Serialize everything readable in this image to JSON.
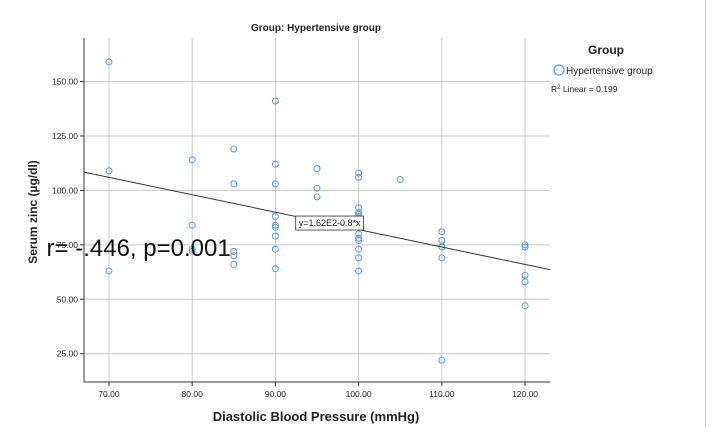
{
  "chart_data": {
    "type": "scatter",
    "title": "Group: Hypertensive group",
    "xlabel": "Diastolic Blood Pressure (mmHg)",
    "ylabel": "Serum zinc (µg/dl)",
    "xlim": [
      67,
      123
    ],
    "ylim": [
      12,
      170
    ],
    "x_ticks": [
      70,
      80,
      90,
      100,
      110,
      120
    ],
    "x_tick_labels": [
      "70.00",
      "80.00",
      "90.00",
      "100.00",
      "110.00",
      "120.00"
    ],
    "y_ticks": [
      25,
      50,
      75,
      100,
      125,
      150
    ],
    "y_tick_labels": [
      "25.00",
      "50.00",
      "75.00",
      "100.00",
      "125.00",
      "150.00"
    ],
    "grid": true,
    "legend": {
      "title": "Group",
      "placement": "right",
      "entries": [
        "Hypertensive group"
      ],
      "note": "R² Linear = 0.199"
    },
    "series": [
      {
        "name": "Hypertensive group",
        "color": "#5b9bd5",
        "points": [
          [
            70,
            159
          ],
          [
            70,
            109
          ],
          [
            70,
            63
          ],
          [
            80,
            114
          ],
          [
            80,
            84
          ],
          [
            80,
            73
          ],
          [
            80,
            72
          ],
          [
            85,
            119
          ],
          [
            85,
            103
          ],
          [
            85,
            72
          ],
          [
            85,
            70
          ],
          [
            85,
            66
          ],
          [
            90,
            141
          ],
          [
            90,
            112
          ],
          [
            90,
            103
          ],
          [
            90,
            88
          ],
          [
            90,
            84
          ],
          [
            90,
            83
          ],
          [
            90,
            79
          ],
          [
            90,
            73
          ],
          [
            90,
            64
          ],
          [
            95,
            110
          ],
          [
            95,
            101
          ],
          [
            95,
            97
          ],
          [
            100,
            108
          ],
          [
            100,
            106
          ],
          [
            100,
            92
          ],
          [
            100,
            90
          ],
          [
            100,
            89
          ],
          [
            100,
            88
          ],
          [
            100,
            87
          ],
          [
            100,
            86
          ],
          [
            100,
            80
          ],
          [
            100,
            78
          ],
          [
            100,
            77
          ],
          [
            100,
            73
          ],
          [
            100,
            69
          ],
          [
            100,
            63
          ],
          [
            105,
            105
          ],
          [
            110,
            81
          ],
          [
            110,
            77
          ],
          [
            110,
            74
          ],
          [
            110,
            69
          ],
          [
            110,
            22
          ],
          [
            120,
            75
          ],
          [
            120,
            74
          ],
          [
            120,
            61
          ],
          [
            120,
            58
          ],
          [
            120,
            47
          ]
        ]
      }
    ],
    "fit_line": {
      "intercept": 162,
      "slope": -0.8,
      "x_range": [
        67,
        123
      ]
    },
    "annotations": {
      "equation": "y=1.62E2-0.8*x",
      "equation_at": [
        92.2,
        85
      ],
      "correlation": "r= -.446, p=0.001",
      "correlation_at": [
        62.5,
        74
      ]
    }
  }
}
